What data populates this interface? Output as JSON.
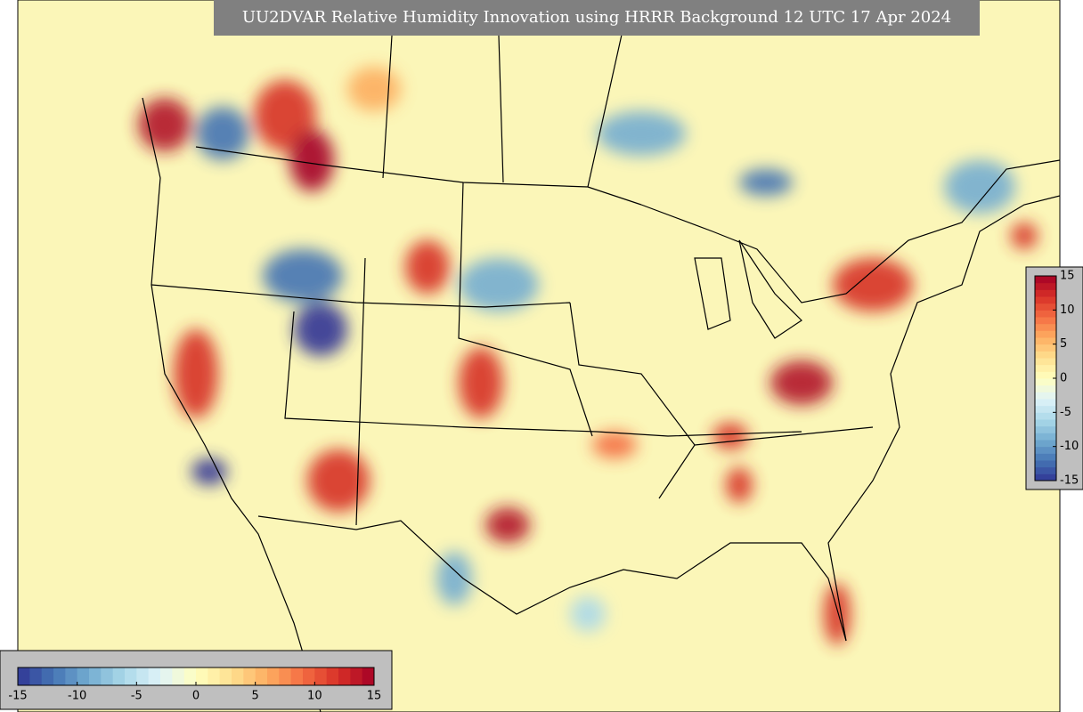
{
  "map": {
    "title": "UU2DVAR Relative Humidity Innovation using HRRR Background 12 UTC 17 Apr 2024",
    "colormap": [
      "#313695",
      "#4575b4",
      "#74add1",
      "#abd9e9",
      "#e0f3f8",
      "#ffffbf",
      "#fee090",
      "#fdae61",
      "#f46d43",
      "#d73027",
      "#a50026"
    ],
    "colorbars": [
      {
        "orientation": "horizontal",
        "range": [
          -15,
          15
        ],
        "ticks": [
          -15,
          -10,
          -5,
          0,
          5,
          10,
          15
        ]
      },
      {
        "orientation": "vertical",
        "range": [
          -15,
          15
        ],
        "ticks": [
          15,
          10,
          5,
          0,
          -5,
          -10,
          -15
        ]
      }
    ]
  }
}
